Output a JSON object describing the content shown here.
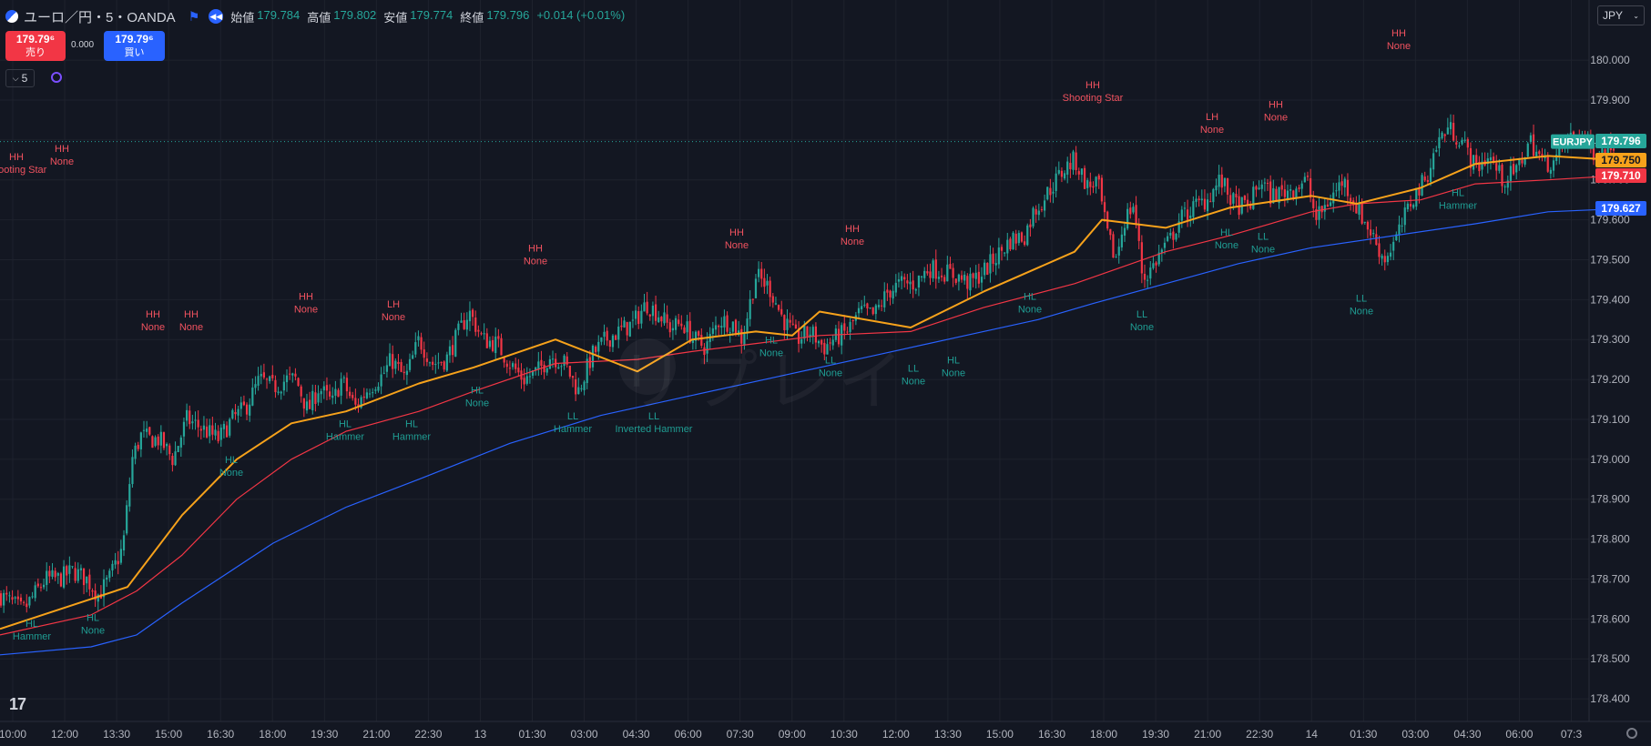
{
  "header": {
    "symbol": "ユーロ／円・5・OANDA",
    "ohlc": [
      {
        "label": "始値",
        "value": "179.784"
      },
      {
        "label": "高値",
        "value": "179.802"
      },
      {
        "label": "安値",
        "value": "179.774"
      },
      {
        "label": "終値",
        "value": "179.796"
      }
    ],
    "change": "+0.014 (+0.01%)"
  },
  "trade": {
    "sell_price": "179.79⁶",
    "sell_label": "売り",
    "spread": "0.000",
    "buy_price": "179.79⁶",
    "buy_label": "買い"
  },
  "interval": "5",
  "currency": "JPY",
  "watermark": "リプレイ",
  "tv_logo": "17",
  "colors": {
    "bg": "#131722",
    "up": "#26a69a",
    "down": "#f23645",
    "ema_fast": "#f7a21b",
    "ema_mid": "#f23645",
    "ema_slow": "#2962ff"
  },
  "chart_data": {
    "type": "candlestick",
    "ylim": [
      178.35,
      180.08
    ],
    "y_ticks": [
      "180.000",
      "179.900",
      "179.800",
      "179.700",
      "179.600",
      "179.500",
      "179.400",
      "179.300",
      "179.200",
      "179.100",
      "179.000",
      "178.900",
      "178.800",
      "178.700",
      "178.600",
      "178.500",
      "178.400"
    ],
    "x_ticks": [
      "10:00",
      "12:00",
      "13:30",
      "15:00",
      "16:30",
      "18:00",
      "19:30",
      "21:00",
      "22:30",
      "13",
      "01:30",
      "03:00",
      "04:30",
      "06:00",
      "07:30",
      "09:00",
      "10:30",
      "12:00",
      "13:30",
      "15:00",
      "16:30",
      "18:00",
      "19:30",
      "21:00",
      "22:30",
      "14",
      "01:30",
      "03:00",
      "04:30",
      "06:00",
      "07:3"
    ],
    "price_labels": [
      {
        "text": "EURJPY",
        "value": 179.796,
        "color": "#26a69a"
      },
      {
        "text": "179.796",
        "value": 179.796,
        "color": "#26a69a"
      },
      {
        "text": "179.750",
        "value": 179.75,
        "color": "#f7a21b"
      },
      {
        "text": "179.710",
        "value": 179.71,
        "color": "#f23645"
      },
      {
        "text": "179.627",
        "value": 179.627,
        "color": "#2962ff"
      }
    ],
    "close_path": [
      [
        0,
        178.66
      ],
      [
        25,
        178.62
      ],
      [
        50,
        178.7
      ],
      [
        65,
        178.7
      ],
      [
        80,
        178.72
      ],
      [
        95,
        178.7
      ],
      [
        108,
        178.66
      ],
      [
        120,
        178.7
      ],
      [
        135,
        178.78
      ],
      [
        145,
        179.0
      ],
      [
        155,
        179.06
      ],
      [
        165,
        179.05
      ],
      [
        175,
        179.05
      ],
      [
        190,
        179.0
      ],
      [
        205,
        179.1
      ],
      [
        220,
        179.08
      ],
      [
        240,
        179.05
      ],
      [
        255,
        179.1
      ],
      [
        270,
        179.13
      ],
      [
        285,
        179.2
      ],
      [
        300,
        179.18
      ],
      [
        315,
        179.2
      ],
      [
        325,
        179.2
      ],
      [
        338,
        179.12
      ],
      [
        350,
        179.18
      ],
      [
        365,
        179.14
      ],
      [
        375,
        179.2
      ],
      [
        390,
        179.13
      ],
      [
        405,
        179.18
      ],
      [
        420,
        179.21
      ],
      [
        430,
        179.25
      ],
      [
        445,
        179.2
      ],
      [
        460,
        179.3
      ],
      [
        475,
        179.24
      ],
      [
        490,
        179.25
      ],
      [
        500,
        179.3
      ],
      [
        515,
        179.37
      ],
      [
        530,
        179.3
      ],
      [
        545,
        179.29
      ],
      [
        560,
        179.24
      ],
      [
        575,
        179.2
      ],
      [
        590,
        179.22
      ],
      [
        605,
        179.26
      ],
      [
        620,
        179.24
      ],
      [
        635,
        179.17
      ],
      [
        650,
        179.26
      ],
      [
        665,
        179.3
      ],
      [
        680,
        179.32
      ],
      [
        695,
        179.34
      ],
      [
        710,
        179.39
      ],
      [
        725,
        179.36
      ],
      [
        735,
        179.33
      ],
      [
        750,
        179.34
      ],
      [
        762,
        179.3
      ],
      [
        775,
        179.28
      ],
      [
        790,
        179.35
      ],
      [
        805,
        179.34
      ],
      [
        815,
        179.3
      ],
      [
        830,
        179.46
      ],
      [
        845,
        179.43
      ],
      [
        860,
        179.35
      ],
      [
        875,
        179.3
      ],
      [
        890,
        179.32
      ],
      [
        905,
        179.28
      ],
      [
        915,
        179.3
      ],
      [
        930,
        179.32
      ],
      [
        945,
        179.37
      ],
      [
        960,
        179.36
      ],
      [
        975,
        179.42
      ],
      [
        990,
        179.44
      ],
      [
        1005,
        179.44
      ],
      [
        1020,
        179.48
      ],
      [
        1035,
        179.47
      ],
      [
        1050,
        179.46
      ],
      [
        1065,
        179.44
      ],
      [
        1080,
        179.47
      ],
      [
        1095,
        179.51
      ],
      [
        1110,
        179.55
      ],
      [
        1125,
        179.56
      ],
      [
        1135,
        179.62
      ],
      [
        1145,
        179.65
      ],
      [
        1160,
        179.7
      ],
      [
        1170,
        179.73
      ],
      [
        1180,
        179.75
      ],
      [
        1195,
        179.68
      ],
      [
        1205,
        179.7
      ],
      [
        1215,
        179.57
      ],
      [
        1225,
        179.5
      ],
      [
        1235,
        179.6
      ],
      [
        1245,
        179.64
      ],
      [
        1255,
        179.45
      ],
      [
        1265,
        179.48
      ],
      [
        1275,
        179.52
      ],
      [
        1285,
        179.55
      ],
      [
        1295,
        179.6
      ],
      [
        1310,
        179.63
      ],
      [
        1325,
        179.65
      ],
      [
        1340,
        179.7
      ],
      [
        1355,
        179.64
      ],
      [
        1370,
        179.63
      ],
      [
        1385,
        179.7
      ],
      [
        1395,
        179.66
      ],
      [
        1410,
        179.67
      ],
      [
        1420,
        179.68
      ],
      [
        1435,
        179.7
      ],
      [
        1445,
        179.6
      ],
      [
        1460,
        179.65
      ],
      [
        1475,
        179.7
      ],
      [
        1490,
        179.63
      ],
      [
        1505,
        179.57
      ],
      [
        1520,
        179.5
      ],
      [
        1535,
        179.56
      ],
      [
        1550,
        179.65
      ],
      [
        1565,
        179.7
      ],
      [
        1580,
        179.8
      ],
      [
        1590,
        179.83
      ],
      [
        1605,
        179.8
      ],
      [
        1620,
        179.73
      ],
      [
        1635,
        179.76
      ],
      [
        1650,
        179.7
      ],
      [
        1665,
        179.72
      ],
      [
        1680,
        179.8
      ],
      [
        1695,
        179.74
      ],
      [
        1710,
        179.75
      ],
      [
        1720,
        179.8
      ],
      [
        1735,
        179.82
      ],
      [
        1750,
        179.77
      ],
      [
        1765,
        179.775
      ],
      [
        1772,
        179.796
      ]
    ],
    "candle_step": 3.14,
    "ema_fast": [
      [
        0,
        178.575
      ],
      [
        100,
        178.65
      ],
      [
        140,
        178.68
      ],
      [
        200,
        178.86
      ],
      [
        260,
        179.0
      ],
      [
        320,
        179.09
      ],
      [
        380,
        179.12
      ],
      [
        460,
        179.19
      ],
      [
        520,
        179.23
      ],
      [
        610,
        179.3
      ],
      [
        700,
        179.22
      ],
      [
        760,
        179.3
      ],
      [
        830,
        179.32
      ],
      [
        870,
        179.31
      ],
      [
        900,
        179.37
      ],
      [
        1000,
        179.33
      ],
      [
        1080,
        179.42
      ],
      [
        1180,
        179.52
      ],
      [
        1210,
        179.6
      ],
      [
        1280,
        179.58
      ],
      [
        1350,
        179.63
      ],
      [
        1440,
        179.66
      ],
      [
        1490,
        179.64
      ],
      [
        1560,
        179.68
      ],
      [
        1620,
        179.74
      ],
      [
        1700,
        179.76
      ],
      [
        1772,
        179.75
      ]
    ],
    "ema_mid": [
      [
        0,
        178.56
      ],
      [
        100,
        178.61
      ],
      [
        150,
        178.67
      ],
      [
        200,
        178.76
      ],
      [
        260,
        178.9
      ],
      [
        320,
        179.0
      ],
      [
        380,
        179.07
      ],
      [
        460,
        179.12
      ],
      [
        520,
        179.17
      ],
      [
        610,
        179.24
      ],
      [
        700,
        179.25
      ],
      [
        760,
        179.27
      ],
      [
        830,
        179.29
      ],
      [
        900,
        179.31
      ],
      [
        1000,
        179.32
      ],
      [
        1080,
        179.38
      ],
      [
        1180,
        179.44
      ],
      [
        1280,
        179.52
      ],
      [
        1350,
        179.56
      ],
      [
        1440,
        179.62
      ],
      [
        1490,
        179.64
      ],
      [
        1560,
        179.65
      ],
      [
        1620,
        179.69
      ],
      [
        1700,
        179.7
      ],
      [
        1772,
        179.71
      ]
    ],
    "ema_slow": [
      [
        0,
        178.51
      ],
      [
        100,
        178.53
      ],
      [
        150,
        178.56
      ],
      [
        200,
        178.64
      ],
      [
        300,
        178.79
      ],
      [
        380,
        178.88
      ],
      [
        460,
        178.95
      ],
      [
        560,
        179.04
      ],
      [
        660,
        179.11
      ],
      [
        760,
        179.16
      ],
      [
        860,
        179.21
      ],
      [
        960,
        179.26
      ],
      [
        1060,
        179.31
      ],
      [
        1140,
        179.35
      ],
      [
        1200,
        179.39
      ],
      [
        1280,
        179.44
      ],
      [
        1360,
        179.49
      ],
      [
        1440,
        179.53
      ],
      [
        1530,
        179.56
      ],
      [
        1620,
        179.59
      ],
      [
        1700,
        179.62
      ],
      [
        1772,
        179.627
      ]
    ],
    "annotations": [
      {
        "x": 18,
        "y": 179.75,
        "type": "high",
        "l1": "HH",
        "l2": "Shooting Star"
      },
      {
        "x": 68,
        "y": 179.77,
        "type": "high",
        "l1": "HH",
        "l2": "None"
      },
      {
        "x": 168,
        "y": 179.355,
        "type": "high",
        "l1": "HH",
        "l2": "None"
      },
      {
        "x": 210,
        "y": 179.355,
        "type": "high",
        "l1": "HH",
        "l2": "None"
      },
      {
        "x": 336,
        "y": 179.4,
        "type": "high",
        "l1": "HH",
        "l2": "None"
      },
      {
        "x": 432,
        "y": 179.38,
        "type": "high",
        "l1": "LH",
        "l2": "None"
      },
      {
        "x": 588,
        "y": 179.52,
        "type": "high",
        "l1": "HH",
        "l2": "None"
      },
      {
        "x": 809,
        "y": 179.56,
        "type": "high",
        "l1": "HH",
        "l2": "None"
      },
      {
        "x": 936,
        "y": 179.57,
        "type": "high",
        "l1": "HH",
        "l2": "None"
      },
      {
        "x": 1200,
        "y": 179.93,
        "type": "high",
        "l1": "HH",
        "l2": "Shooting Star"
      },
      {
        "x": 1331,
        "y": 179.85,
        "type": "high",
        "l1": "LH",
        "l2": "None"
      },
      {
        "x": 1401,
        "y": 179.88,
        "type": "high",
        "l1": "HH",
        "l2": "None"
      },
      {
        "x": 1536,
        "y": 180.06,
        "type": "high",
        "l1": "HH",
        "l2": "None"
      },
      {
        "x": 35,
        "y": 178.58,
        "type": "low",
        "l1": "HL",
        "l2": "Hammer"
      },
      {
        "x": 102,
        "y": 178.595,
        "type": "low",
        "l1": "HL",
        "l2": "None"
      },
      {
        "x": 254,
        "y": 178.99,
        "type": "low",
        "l1": "HL",
        "l2": "None"
      },
      {
        "x": 379,
        "y": 179.08,
        "type": "low",
        "l1": "HL",
        "l2": "Hammer"
      },
      {
        "x": 452,
        "y": 179.08,
        "type": "low",
        "l1": "HL",
        "l2": "Hammer"
      },
      {
        "x": 524,
        "y": 179.165,
        "type": "low",
        "l1": "HL",
        "l2": "None"
      },
      {
        "x": 629,
        "y": 179.1,
        "type": "low",
        "l1": "LL",
        "l2": "Hammer"
      },
      {
        "x": 718,
        "y": 179.1,
        "type": "low",
        "l1": "LL",
        "l2": "Inverted Hammer"
      },
      {
        "x": 847,
        "y": 179.29,
        "type": "low",
        "l1": "HL",
        "l2": "None"
      },
      {
        "x": 912,
        "y": 179.24,
        "type": "low",
        "l1": "LL",
        "l2": "None"
      },
      {
        "x": 1003,
        "y": 179.22,
        "type": "low",
        "l1": "LL",
        "l2": "None"
      },
      {
        "x": 1047,
        "y": 179.24,
        "type": "low",
        "l1": "HL",
        "l2": "None"
      },
      {
        "x": 1131,
        "y": 179.4,
        "type": "low",
        "l1": "HL",
        "l2": "None"
      },
      {
        "x": 1254,
        "y": 179.355,
        "type": "low",
        "l1": "LL",
        "l2": "None"
      },
      {
        "x": 1347,
        "y": 179.56,
        "type": "low",
        "l1": "HL",
        "l2": "None"
      },
      {
        "x": 1387,
        "y": 179.55,
        "type": "low",
        "l1": "LL",
        "l2": "None"
      },
      {
        "x": 1495,
        "y": 179.395,
        "type": "low",
        "l1": "LL",
        "l2": "None"
      },
      {
        "x": 1601,
        "y": 179.66,
        "type": "low",
        "l1": "HL",
        "l2": "Hammer"
      }
    ]
  }
}
